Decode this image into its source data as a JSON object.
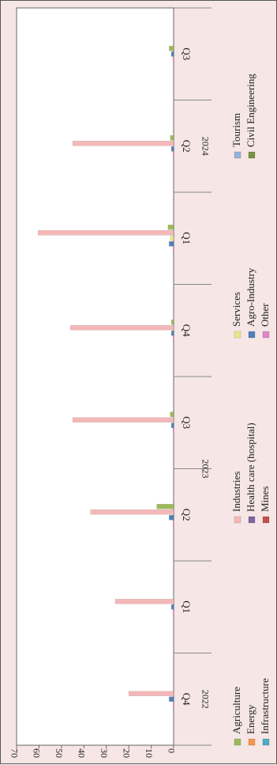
{
  "chart_data": {
    "type": "bar",
    "orientation": "rotated-90",
    "title": "",
    "xlabel": "",
    "ylabel": "",
    "ylim": [
      0,
      70
    ],
    "yticks": [
      0,
      10,
      20,
      30,
      40,
      50,
      60,
      70
    ],
    "grid": false,
    "legend_position": "bottom",
    "years": [
      {
        "label": "2022",
        "span": [
          0,
          1
        ]
      },
      {
        "label": "2023",
        "span": [
          1,
          5
        ]
      },
      {
        "label": "2024",
        "span": [
          5,
          8
        ]
      }
    ],
    "categories": [
      "Q4",
      "Q1",
      "Q2",
      "Q3",
      "Q4",
      "Q1",
      "Q2",
      "Q3"
    ],
    "series": [
      {
        "name": "Agriculture",
        "color": "#9bbb59",
        "values": [
          0,
          0,
          7.5,
          1.5,
          1,
          2.5,
          1.5,
          2
        ]
      },
      {
        "name": "Energy",
        "color": "#f79646",
        "values": [
          0,
          0,
          0,
          0,
          0,
          0,
          0,
          0
        ]
      },
      {
        "name": "Infrastructure",
        "color": "#4bacc6",
        "values": [
          0,
          0,
          0,
          0,
          0,
          0,
          0,
          0
        ]
      },
      {
        "name": "Industries",
        "color": "#f4b8b8",
        "values": [
          20,
          26,
          37,
          45,
          46,
          60.5,
          45,
          0
        ]
      },
      {
        "name": "Health care (hospital)",
        "color": "#8064a2",
        "values": [
          0,
          0,
          0,
          0,
          0,
          0,
          0,
          0
        ]
      },
      {
        "name": "Mines",
        "color": "#c0504d",
        "values": [
          0,
          0,
          0,
          0,
          0,
          0,
          0,
          0
        ]
      },
      {
        "name": "Services",
        "color": "#ece48a",
        "values": [
          0,
          0,
          0,
          0,
          0,
          1.5,
          0,
          0
        ]
      },
      {
        "name": "Agro-Industry",
        "color": "#4f81bd",
        "values": [
          2,
          1,
          2,
          1,
          1,
          2,
          1,
          1
        ]
      },
      {
        "name": "Other",
        "color": "#e384c8",
        "values": [
          0.3,
          0.3,
          0.3,
          0.3,
          0.3,
          0.3,
          0.3,
          0.3
        ]
      },
      {
        "name": "Tourism",
        "color": "#95b3d7",
        "values": [
          0,
          0,
          0,
          0,
          0,
          0,
          0,
          0
        ]
      },
      {
        "name": "Civil Engineering",
        "color": "#77933c",
        "values": [
          0,
          0,
          0,
          0,
          0,
          0,
          0,
          0
        ]
      }
    ]
  }
}
